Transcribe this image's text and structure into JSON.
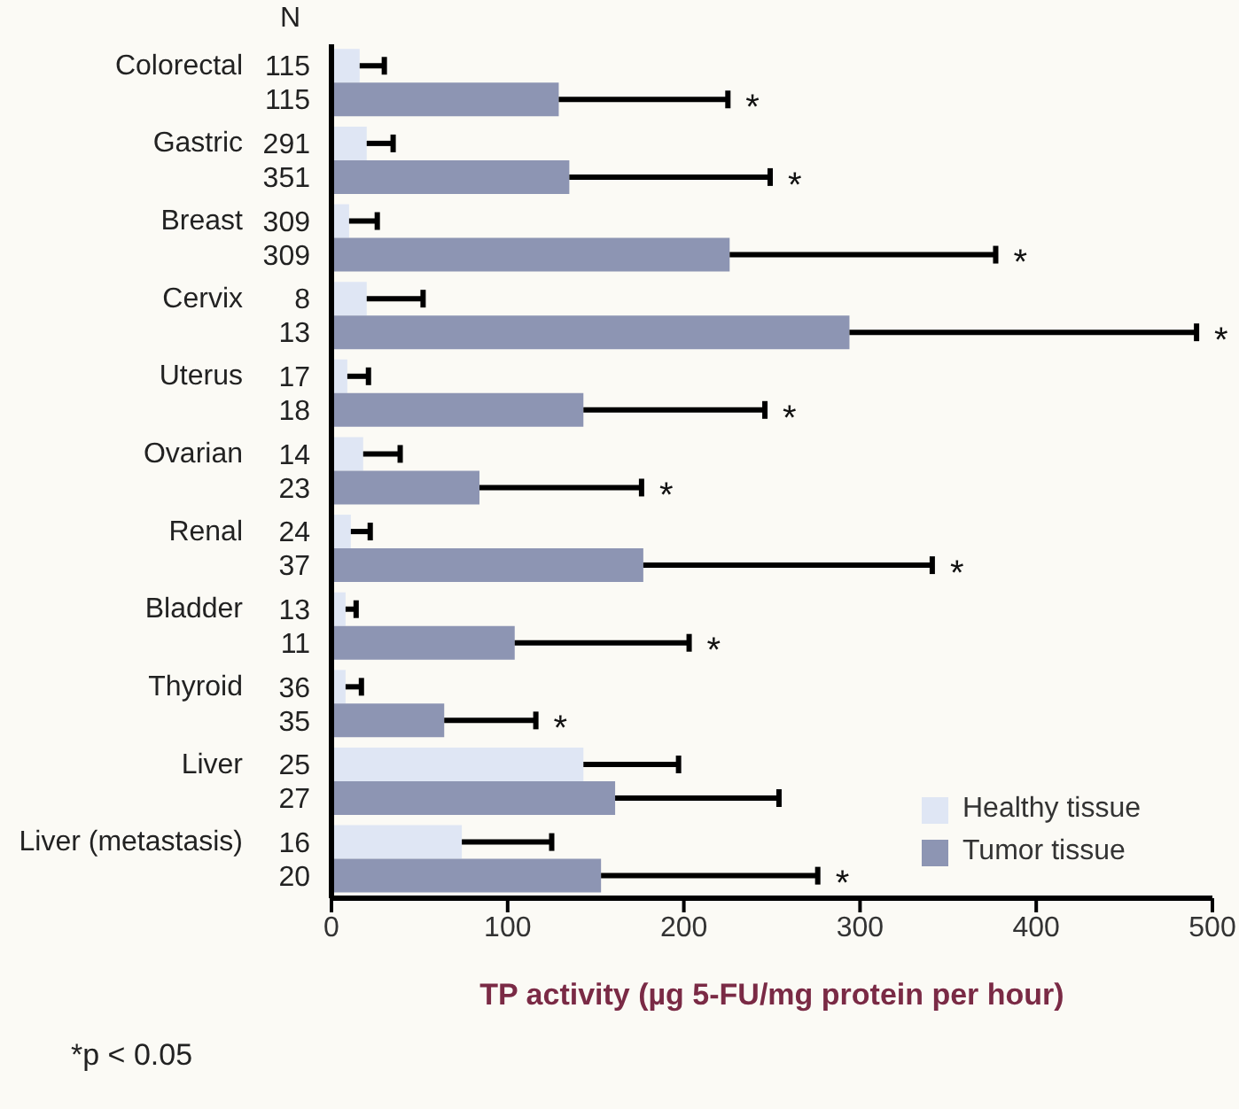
{
  "chart_data": {
    "type": "bar",
    "orientation": "horizontal",
    "xlabel": "TP activity (µg 5-FU/mg protein per hour)",
    "categories": [
      "Colorectal",
      "Gastric",
      "Breast",
      "Cervix",
      "Uterus",
      "Ovarian",
      "Renal",
      "Bladder",
      "Thyroid",
      "Liver",
      "Liver (metastasis)"
    ],
    "series": [
      {
        "name": "Healthy tissue",
        "color": "#dfe6f4",
        "values": [
          16,
          20,
          10,
          20,
          9,
          18,
          11,
          8,
          8,
          143,
          74
        ],
        "errors": [
          [
            16,
            30
          ],
          [
            20,
            35
          ],
          [
            10,
            26
          ],
          [
            20,
            52
          ],
          [
            9,
            21
          ],
          [
            18,
            39
          ],
          [
            11,
            22
          ],
          [
            8,
            14
          ],
          [
            8,
            17
          ],
          [
            143,
            197
          ],
          [
            74,
            125
          ]
        ]
      },
      {
        "name": "Tumor tissue",
        "color": "#8d95b3",
        "values": [
          129,
          135,
          226,
          294,
          143,
          84,
          177,
          104,
          64,
          161,
          153
        ],
        "errors": [
          [
            129,
            225
          ],
          [
            135,
            249
          ],
          [
            226,
            377
          ],
          [
            294,
            491
          ],
          [
            143,
            246
          ],
          [
            84,
            176
          ],
          [
            177,
            341
          ],
          [
            104,
            203
          ],
          [
            64,
            116
          ],
          [
            161,
            254
          ],
          [
            153,
            276
          ]
        ]
      }
    ],
    "xlim": [
      0,
      500
    ],
    "xticks": [
      0,
      100,
      200,
      300,
      400,
      500
    ],
    "grid": false,
    "legend": "bottom right",
    "annotations": [
      "N",
      "115",
      "115",
      "291",
      "351",
      "309",
      "309",
      "8",
      "13",
      "17",
      "18",
      "14",
      "23",
      "24",
      "37",
      "13",
      "11",
      "36",
      "35",
      "25",
      "27",
      "16",
      "20",
      "*",
      "*",
      "*",
      "*",
      "*",
      "*",
      "*",
      "*",
      "*",
      "*",
      "*p < 0.05"
    ]
  }
}
